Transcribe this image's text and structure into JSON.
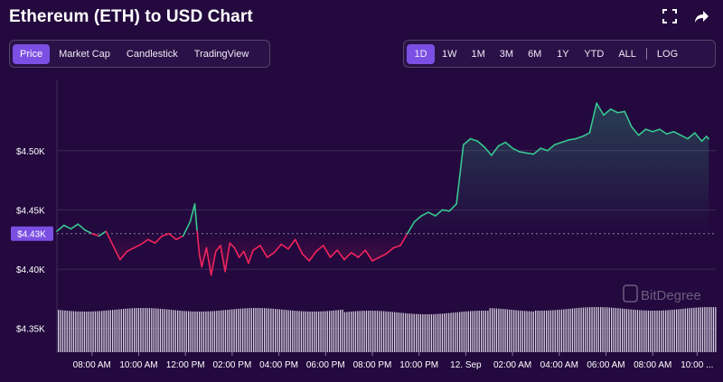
{
  "title": "Ethereum (ETH) to USD Chart",
  "icons": {
    "fullscreen": "fullscreen-icon",
    "share": "share-icon"
  },
  "tabs": [
    "Price",
    "Market Cap",
    "Candlestick",
    "TradingView"
  ],
  "active_tab": "Price",
  "ranges": [
    "1D",
    "1W",
    "1M",
    "3M",
    "6M",
    "1Y",
    "YTD",
    "ALL"
  ],
  "log_label": "LOG",
  "active_range": "1D",
  "watermark": "BitDegree",
  "colors": {
    "up": "#37c78f",
    "down": "#f2245d",
    "accent": "#7b4fe3",
    "background": "#23093e"
  },
  "chart_data": {
    "type": "line",
    "baseline": 4430,
    "current_price_label": "$4.43K",
    "ylim": [
      4330,
      4560
    ],
    "yticks": [
      {
        "value": 4350,
        "label": "$4.35K"
      },
      {
        "value": 4400,
        "label": "$4.40K"
      },
      {
        "value": 4450,
        "label": "$4.45K"
      },
      {
        "value": 4500,
        "label": "$4.50K"
      }
    ],
    "xticks": [
      {
        "x": 0.75,
        "label": "08:00 AM"
      },
      {
        "x": 1.75,
        "label": "10:00 AM"
      },
      {
        "x": 2.75,
        "label": "12:00 PM"
      },
      {
        "x": 3.75,
        "label": "02:00 PM"
      },
      {
        "x": 4.75,
        "label": "04:00 PM"
      },
      {
        "x": 5.75,
        "label": "06:00 PM"
      },
      {
        "x": 6.75,
        "label": "08:00 PM"
      },
      {
        "x": 7.75,
        "label": "10:00 PM"
      },
      {
        "x": 8.75,
        "label": "12. Sep"
      },
      {
        "x": 9.75,
        "label": "02:00 AM"
      },
      {
        "x": 10.75,
        "label": "04:00 AM"
      },
      {
        "x": 11.75,
        "label": "06:00 AM"
      },
      {
        "x": 12.75,
        "label": "08:00 AM"
      },
      {
        "x": 13.7,
        "label": "10:00 ..."
      }
    ],
    "xlim": [
      0,
      14.1
    ],
    "series": [
      {
        "x": [
          0,
          0.15,
          0.3,
          0.45,
          0.6,
          0.75,
          0.9,
          1.05,
          1.2,
          1.35,
          1.5,
          1.65,
          1.8,
          1.95,
          2.1,
          2.25,
          2.4,
          2.55,
          2.7,
          2.85,
          2.95,
          3.0,
          3.05,
          3.1,
          3.2,
          3.3,
          3.4,
          3.5,
          3.6,
          3.7,
          3.8,
          3.9,
          4.0,
          4.1,
          4.2,
          4.35,
          4.5,
          4.65,
          4.8,
          4.95,
          5.1,
          5.25,
          5.4,
          5.55,
          5.7,
          5.85,
          6.0,
          6.15,
          6.3,
          6.45,
          6.6,
          6.75,
          6.9,
          7.05,
          7.2,
          7.35,
          7.5,
          7.65,
          7.8,
          7.95,
          8.1,
          8.25,
          8.4,
          8.55,
          8.7,
          8.85,
          9.0,
          9.15,
          9.3,
          9.45,
          9.6,
          9.75,
          9.9,
          10.05,
          10.2,
          10.35,
          10.5,
          10.65,
          10.8,
          10.95,
          11.1,
          11.25,
          11.4,
          11.55,
          11.7,
          11.85,
          12.0,
          12.15,
          12.3,
          12.45,
          12.6,
          12.75,
          12.9,
          13.05,
          13.2,
          13.35,
          13.5,
          13.65,
          13.8,
          13.9,
          13.95
        ],
        "y": [
          4432,
          4437,
          4434,
          4438,
          4433,
          4430,
          4428,
          4432,
          4420,
          4408,
          4415,
          4418,
          4421,
          4425,
          4422,
          4428,
          4430,
          4425,
          4428,
          4440,
          4455,
          4432,
          4412,
          4402,
          4418,
          4395,
          4415,
          4420,
          4398,
          4422,
          4418,
          4410,
          4415,
          4405,
          4416,
          4420,
          4410,
          4414,
          4421,
          4417,
          4425,
          4413,
          4407,
          4415,
          4420,
          4410,
          4416,
          4408,
          4414,
          4410,
          4416,
          4407,
          4410,
          4413,
          4418,
          4420,
          4430,
          4440,
          4445,
          4448,
          4445,
          4450,
          4449,
          4455,
          4505,
          4510,
          4508,
          4503,
          4496,
          4504,
          4507,
          4502,
          4499,
          4498,
          4497,
          4502,
          4500,
          4505,
          4507,
          4509,
          4510,
          4512,
          4515,
          4540,
          4530,
          4535,
          4532,
          4533,
          4520,
          4513,
          4518,
          4516,
          4518,
          4514,
          4516,
          4513,
          4510,
          4515,
          4508,
          4512,
          4510
        ]
      }
    ],
    "volume_note": "volume bars (unlabeled)"
  }
}
